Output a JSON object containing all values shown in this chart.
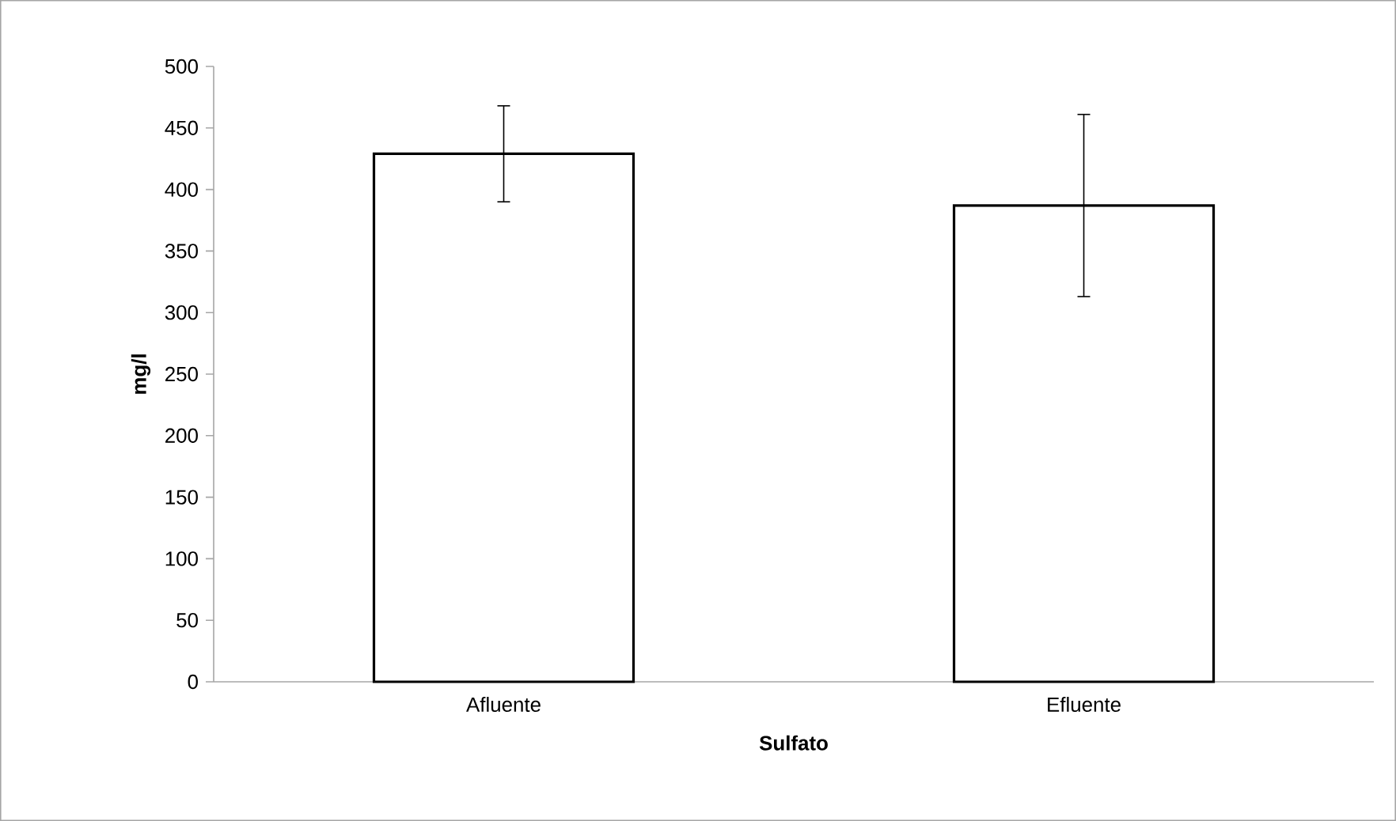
{
  "chart_data": {
    "type": "bar",
    "xlabel": "Sulfato",
    "ylabel": "mg/l",
    "categories": [
      "Afluente",
      "Efluente"
    ],
    "values": [
      429,
      387
    ],
    "errors": [
      39,
      74
    ],
    "color": "#ffffff",
    "ylim": [
      0,
      500
    ],
    "yticks": [
      0,
      50,
      100,
      150,
      200,
      250,
      300,
      350,
      400,
      450,
      500
    ]
  }
}
